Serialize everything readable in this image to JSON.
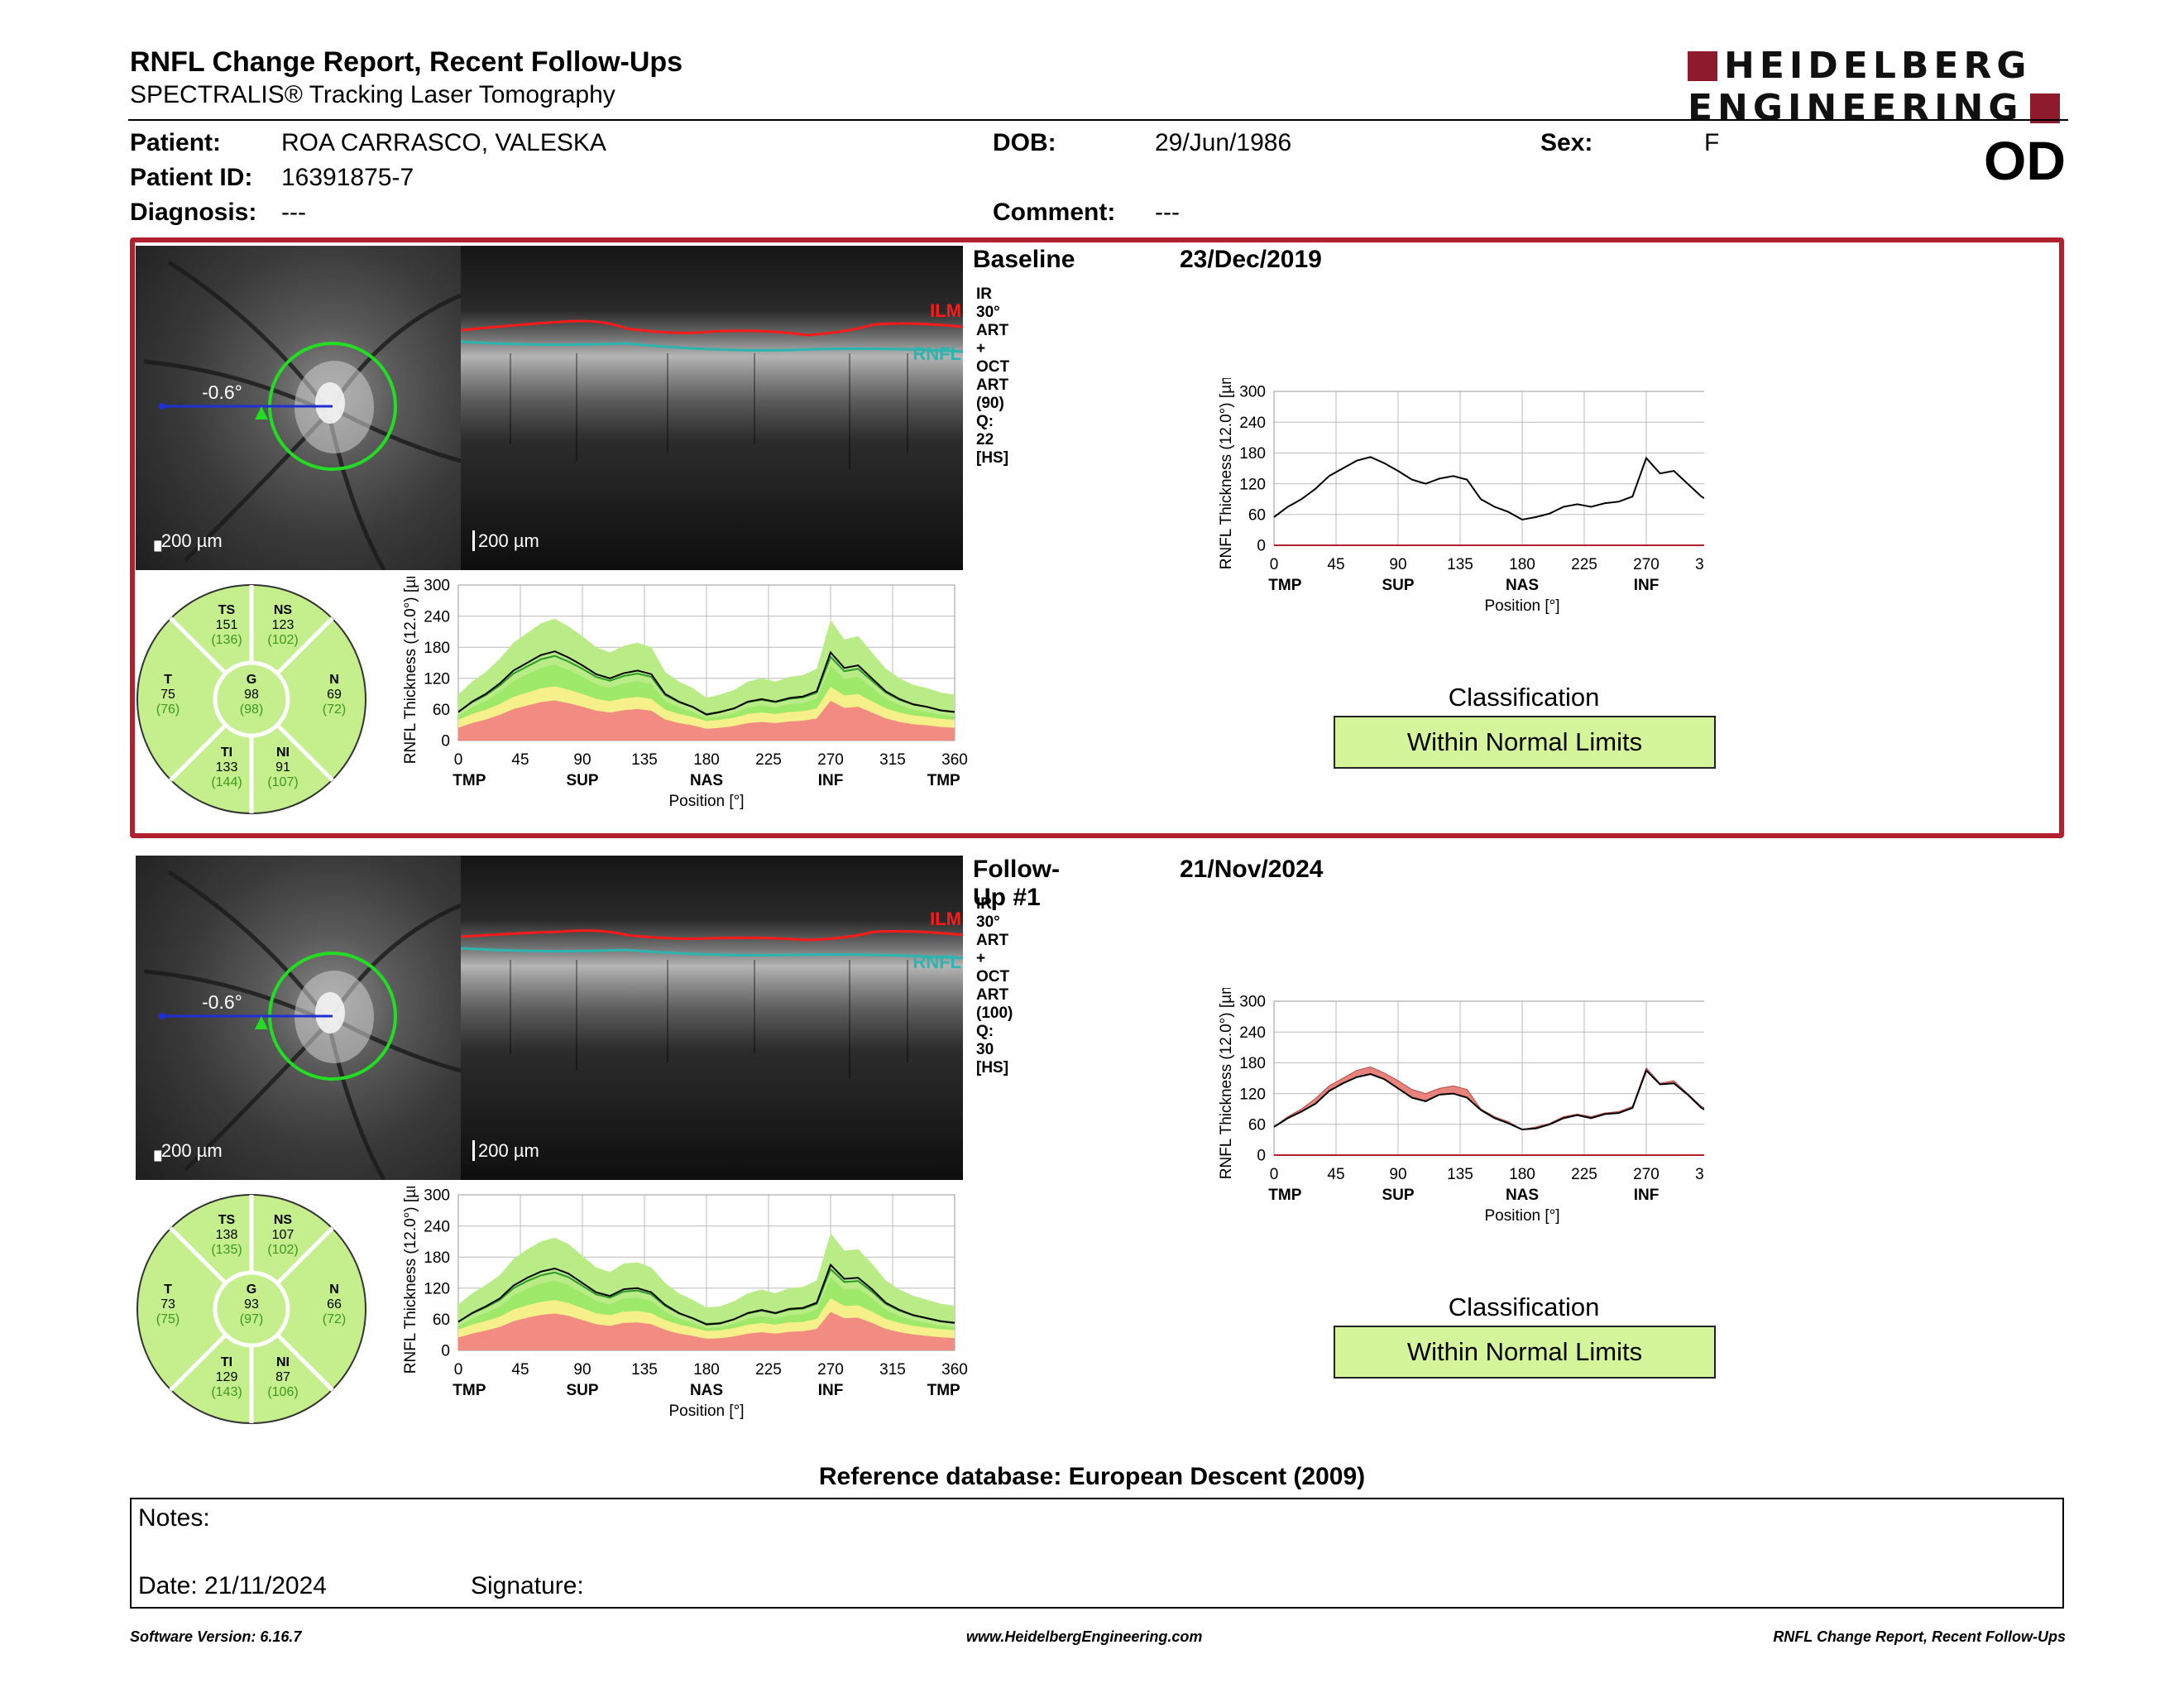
{
  "report": {
    "title": "RNFL Change Report, Recent Follow-Ups",
    "subtitle": "SPECTRALIS® Tracking Laser Tomography",
    "logo_line1": "HEIDELBERG",
    "logo_line2": "ENGINEERING",
    "eye": "OD"
  },
  "patient": {
    "patient_label": "Patient:",
    "patient_value": "ROA CARRASCO, VALESKA",
    "dob_label": "DOB:",
    "dob_value": "29/Jun/1986",
    "sex_label": "Sex:",
    "sex_value": "F",
    "id_label": "Patient ID:",
    "id_value": "16391875-7",
    "diagnosis_label": "Diagnosis:",
    "diagnosis_value": "---",
    "comment_label": "Comment:",
    "comment_value": "---"
  },
  "exams": [
    {
      "label": "Baseline",
      "date": "23/Dec/2019",
      "scan_info": "IR 30° ART + OCT ART (90) Q: 22 [HS]",
      "angle": "-0.6°",
      "scale_ir": "200 µm",
      "scale_oct": "200 µm",
      "ilm_label": "ILM",
      "rnfl_label": "RNFL",
      "classification_title": "Classification",
      "classification": "Within Normal Limits",
      "sectors": {
        "TS": {
          "name": "TS",
          "value": "151",
          "ref": "(136)"
        },
        "NS": {
          "name": "NS",
          "value": "123",
          "ref": "(102)"
        },
        "T": {
          "name": "T",
          "value": "75",
          "ref": "(76)"
        },
        "G": {
          "name": "G",
          "value": "98",
          "ref": "(98)"
        },
        "N": {
          "name": "N",
          "value": "69",
          "ref": "(72)"
        },
        "TI": {
          "name": "TI",
          "value": "133",
          "ref": "(144)"
        },
        "NI": {
          "name": "NI",
          "value": "91",
          "ref": "(107)"
        }
      }
    },
    {
      "label": "Follow-Up #1",
      "date": "21/Nov/2024",
      "scan_info": "IR 30° ART + OCT ART (100) Q: 30 [HS]",
      "angle": "-0.6°",
      "scale_ir": "200 µm",
      "scale_oct": "200 µm",
      "ilm_label": "ILM",
      "rnfl_label": "RNFL",
      "classification_title": "Classification",
      "classification": "Within Normal Limits",
      "sectors": {
        "TS": {
          "name": "TS",
          "value": "138",
          "ref": "(135)"
        },
        "NS": {
          "name": "NS",
          "value": "107",
          "ref": "(102)"
        },
        "T": {
          "name": "T",
          "value": "73",
          "ref": "(75)"
        },
        "G": {
          "name": "G",
          "value": "93",
          "ref": "(97)"
        },
        "N": {
          "name": "N",
          "value": "66",
          "ref": "(72)"
        },
        "TI": {
          "name": "TI",
          "value": "129",
          "ref": "(143)"
        },
        "NI": {
          "name": "NI",
          "value": "87",
          "ref": "(106)"
        }
      }
    }
  ],
  "chart_data": [
    {
      "type": "line",
      "ylabel": "RNFL Thickness (12.0°) [µm]",
      "xlabel": "Position [°]",
      "ylim": [
        0,
        300
      ],
      "xlim": [
        0,
        360
      ],
      "yticks": [
        "0",
        "60",
        "120",
        "180",
        "240",
        "300"
      ],
      "xticks": [
        "0",
        "45",
        "90",
        "135",
        "180",
        "225",
        "270",
        "315",
        "360"
      ],
      "region_labels": [
        "TMP",
        "SUP",
        "NAS",
        "INF",
        "TMP"
      ],
      "series": [
        {
          "x": [
            0,
            10,
            20,
            30,
            40,
            50,
            60,
            70,
            80,
            90,
            100,
            110,
            120,
            130,
            140,
            150,
            160,
            170,
            180,
            190,
            200,
            210,
            220,
            230,
            240,
            250,
            260,
            270,
            280,
            290,
            300,
            310,
            320,
            330,
            340,
            350,
            360
          ],
          "values": [
            55,
            75,
            90,
            110,
            135,
            150,
            165,
            172,
            160,
            145,
            128,
            120,
            130,
            135,
            128,
            90,
            75,
            65,
            50,
            55,
            62,
            75,
            80,
            75,
            82,
            85,
            95,
            170,
            140,
            145,
            120,
            95,
            80,
            70,
            65,
            58,
            55
          ]
        }
      ]
    },
    {
      "type": "line",
      "ylabel": "RNFL Thickness (12.0°) [µm]",
      "xlabel": "Position [°]",
      "ylim": [
        0,
        300
      ],
      "xlim": [
        0,
        360
      ],
      "yticks": [
        "0",
        "60",
        "120",
        "180",
        "240",
        "300"
      ],
      "xticks": [
        "0",
        "45",
        "90",
        "135",
        "180",
        "225",
        "270",
        "315",
        "360"
      ],
      "region_labels": [
        "TMP",
        "SUP",
        "NAS",
        "INF",
        "TMP"
      ],
      "series": [
        {
          "x": [
            0,
            10,
            20,
            30,
            40,
            50,
            60,
            70,
            80,
            90,
            100,
            110,
            120,
            130,
            140,
            150,
            160,
            170,
            180,
            190,
            200,
            210,
            220,
            230,
            240,
            250,
            260,
            270,
            280,
            290,
            300,
            310,
            320,
            330,
            340,
            350,
            360
          ],
          "values": [
            55,
            72,
            85,
            100,
            125,
            140,
            152,
            158,
            148,
            130,
            112,
            105,
            118,
            120,
            112,
            88,
            72,
            62,
            50,
            52,
            60,
            72,
            78,
            72,
            80,
            82,
            92,
            165,
            138,
            140,
            118,
            92,
            78,
            68,
            62,
            56,
            53
          ]
        }
      ]
    }
  ],
  "reference_db": "Reference database: European Descent (2009)",
  "notes": {
    "label": "Notes:",
    "date_label": "Date: 21/11/2024",
    "signature_label": "Signature:"
  },
  "footer": {
    "left": "Software Version: 6.16.7",
    "center": "www.HeidelbergEngineering.com",
    "right": "RNFL Change Report, Recent Follow-Ups"
  },
  "colors": {
    "accent_red": "#b21f2d",
    "normal_green": "#d4f59a",
    "ilm": "#ff1a1a",
    "rnfl": "#2ab5b0"
  }
}
